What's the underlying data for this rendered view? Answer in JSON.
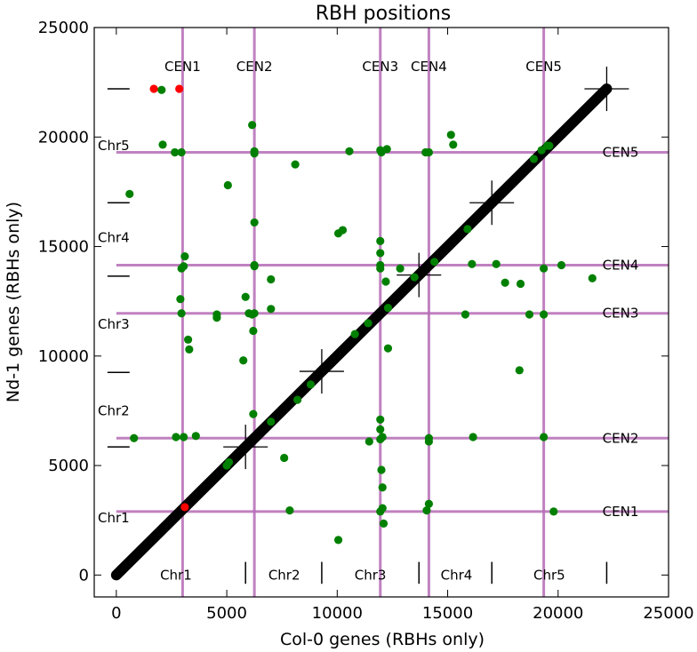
{
  "chart_data": {
    "type": "scatter",
    "title": "RBH positions",
    "xlabel": "Col-0 genes (RBHs only)",
    "ylabel": "Nd-1 genes (RBHs only)",
    "xlim": [
      -1000,
      25000
    ],
    "ylim": [
      -1000,
      25000
    ],
    "x_ticks": [
      0,
      5000,
      10000,
      15000,
      20000,
      25000
    ],
    "y_ticks": [
      0,
      5000,
      10000,
      15000,
      20000,
      25000
    ],
    "grid": false,
    "colors": {
      "diagonal": "#000000",
      "green_points": "#008000",
      "red_points": "#ff0000",
      "centromere_lines": "#b56bb5",
      "marks": "#000000"
    },
    "diagonal": {
      "from": [
        0,
        0
      ],
      "to": [
        22200,
        22200
      ]
    },
    "col0_centromeres": [
      {
        "label": "CEN1",
        "x": 3000
      },
      {
        "label": "CEN2",
        "x": 6250
      },
      {
        "label": "CEN3",
        "x": 11950
      },
      {
        "label": "CEN4",
        "x": 14150
      },
      {
        "label": "CEN5",
        "x": 19350
      }
    ],
    "nd1_centromeres": [
      {
        "label": "CEN1",
        "y": 2900
      },
      {
        "label": "CEN2",
        "y": 6250
      },
      {
        "label": "CEN3",
        "y": 11950
      },
      {
        "label": "CEN4",
        "y": 14150
      },
      {
        "label": "CEN5",
        "y": 19300
      }
    ],
    "col0_chr_boundaries": [
      5850,
      9300,
      13700,
      17000,
      22200
    ],
    "nd1_chr_boundaries": [
      5850,
      9250,
      13650,
      17000,
      22200
    ],
    "col0_chr_labels": [
      {
        "label": "Chr1",
        "x": 2700
      },
      {
        "label": "Chr2",
        "x": 7600
      },
      {
        "label": "Chr3",
        "x": 11500
      },
      {
        "label": "Chr4",
        "x": 15400
      },
      {
        "label": "Chr5",
        "x": 19600
      }
    ],
    "nd1_chr_labels": [
      {
        "label": "Chr1",
        "y": 2600
      },
      {
        "label": "Chr2",
        "y": 7500
      },
      {
        "label": "Chr3",
        "y": 11450
      },
      {
        "label": "Chr4",
        "y": 15400
      },
      {
        "label": "Chr5",
        "y": 19600
      }
    ],
    "cross_marks": [
      [
        5850,
        5850
      ],
      [
        9300,
        9300
      ],
      [
        13700,
        13700
      ],
      [
        17000,
        17000
      ],
      [
        22200,
        22200
      ]
    ],
    "series": [
      {
        "color": "#008000",
        "points": [
          [
            2050,
            22150
          ],
          [
            2100,
            19650
          ],
          [
            2650,
            19300
          ],
          [
            2950,
            19300
          ],
          [
            600,
            17400
          ],
          [
            800,
            6250
          ],
          [
            2700,
            6300
          ],
          [
            3050,
            6300
          ],
          [
            3600,
            6350
          ],
          [
            2950,
            14000
          ],
          [
            3050,
            14100
          ],
          [
            3100,
            14550
          ],
          [
            2900,
            12600
          ],
          [
            2950,
            11950
          ],
          [
            3250,
            10750
          ],
          [
            3300,
            10300
          ],
          [
            4550,
            11900
          ],
          [
            4550,
            11750
          ],
          [
            5050,
            17800
          ],
          [
            5850,
            12700
          ],
          [
            5750,
            9800
          ],
          [
            6000,
            11950
          ],
          [
            6150,
            11900
          ],
          [
            6250,
            11950
          ],
          [
            6200,
            11150
          ],
          [
            6150,
            20550
          ],
          [
            6250,
            19350
          ],
          [
            6250,
            19250
          ],
          [
            6250,
            16100
          ],
          [
            6250,
            14150
          ],
          [
            6250,
            14100
          ],
          [
            6200,
            7350
          ],
          [
            7000,
            13500
          ],
          [
            7000,
            12150
          ],
          [
            8100,
            18750
          ],
          [
            7600,
            5350
          ],
          [
            7850,
            2950
          ],
          [
            10050,
            15600
          ],
          [
            10250,
            15750
          ],
          [
            10550,
            19350
          ],
          [
            10050,
            1600
          ],
          [
            11950,
            19400
          ],
          [
            12000,
            19300
          ],
          [
            12250,
            19450
          ],
          [
            11950,
            15250
          ],
          [
            11950,
            14700
          ],
          [
            11950,
            14150
          ],
          [
            11950,
            14000
          ],
          [
            12200,
            13400
          ],
          [
            12850,
            14000
          ],
          [
            12300,
            10350
          ],
          [
            11950,
            7100
          ],
          [
            11950,
            6650
          ],
          [
            11950,
            6200
          ],
          [
            12050,
            6300
          ],
          [
            11450,
            6100
          ],
          [
            12000,
            4800
          ],
          [
            12050,
            4000
          ],
          [
            12050,
            3050
          ],
          [
            11950,
            2900
          ],
          [
            12100,
            2350
          ],
          [
            14000,
            19300
          ],
          [
            14150,
            19300
          ],
          [
            15150,
            20100
          ],
          [
            15250,
            19650
          ],
          [
            14050,
            2950
          ],
          [
            14150,
            3250
          ],
          [
            14150,
            6250
          ],
          [
            14150,
            6100
          ],
          [
            16150,
            6300
          ],
          [
            15800,
            11900
          ],
          [
            16100,
            14200
          ],
          [
            17200,
            14200
          ],
          [
            17600,
            13350
          ],
          [
            18300,
            13300
          ],
          [
            18250,
            9350
          ],
          [
            18700,
            11900
          ],
          [
            19350,
            11900
          ],
          [
            19350,
            14000
          ],
          [
            20150,
            14150
          ],
          [
            21550,
            13550
          ],
          [
            19800,
            2900
          ],
          [
            19350,
            6300
          ],
          [
            19250,
            19400
          ],
          [
            19600,
            19600
          ],
          [
            5000,
            5000
          ],
          [
            5100,
            5150
          ],
          [
            7000,
            7000
          ],
          [
            8200,
            8000
          ],
          [
            8800,
            8700
          ],
          [
            10800,
            11000
          ],
          [
            11400,
            11500
          ],
          [
            12300,
            12200
          ],
          [
            13500,
            13600
          ],
          [
            14400,
            14300
          ],
          [
            15900,
            15800
          ],
          [
            18900,
            19000
          ],
          [
            19500,
            19600
          ]
        ]
      },
      {
        "color": "#ff0000",
        "points": [
          [
            1700,
            22200
          ],
          [
            2850,
            22200
          ],
          [
            3100,
            3100
          ]
        ]
      }
    ]
  }
}
